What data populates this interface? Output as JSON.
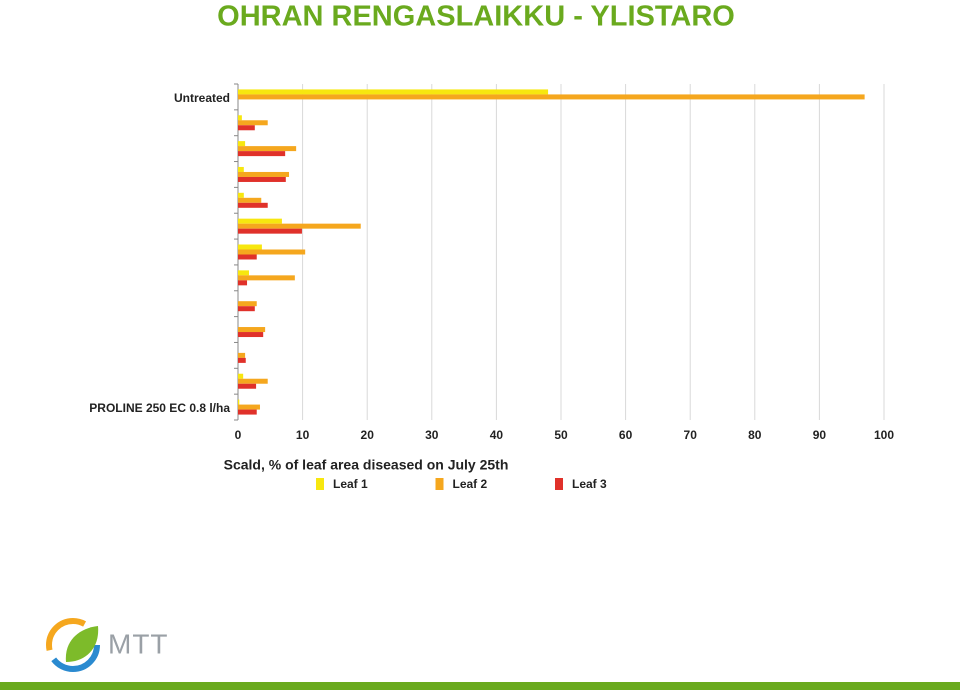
{
  "chart_data": {
    "type": "hbar",
    "title": "OHRAN RENGASLAIKKU - YLISTARO",
    "xlabel": "Scald, % of leaf area diseased on July 25th",
    "categories": [
      "Untreated",
      null,
      null,
      null,
      null,
      null,
      null,
      null,
      null,
      null,
      null,
      null,
      "PROLINE 250 EC 0.8 l/ha"
    ],
    "series": [
      {
        "name": "Leaf 1",
        "color": "#f7e70f",
        "values": [
          48,
          0.6,
          1.1,
          0.9,
          0.9,
          6.8,
          3.7,
          1.7,
          0,
          0,
          0,
          0.8,
          0.2
        ]
      },
      {
        "name": "Leaf 2",
        "color": "#f5a71e",
        "values": [
          97,
          4.6,
          9,
          7.9,
          3.6,
          19,
          10.4,
          8.8,
          2.9,
          4.2,
          1.1,
          4.6,
          3.4
        ]
      },
      {
        "name": "Leaf 3",
        "color": "#e0312a",
        "values": [
          null,
          2.6,
          7.3,
          7.4,
          4.6,
          9.9,
          2.9,
          1.4,
          2.6,
          3.9,
          1.2,
          2.8,
          2.9
        ]
      }
    ],
    "xlim": [
      0,
      100
    ],
    "xticks": [
      0,
      10,
      20,
      30,
      40,
      50,
      60,
      70,
      80,
      90,
      100
    ],
    "grid": true
  },
  "logo": {
    "text": "MTT"
  }
}
